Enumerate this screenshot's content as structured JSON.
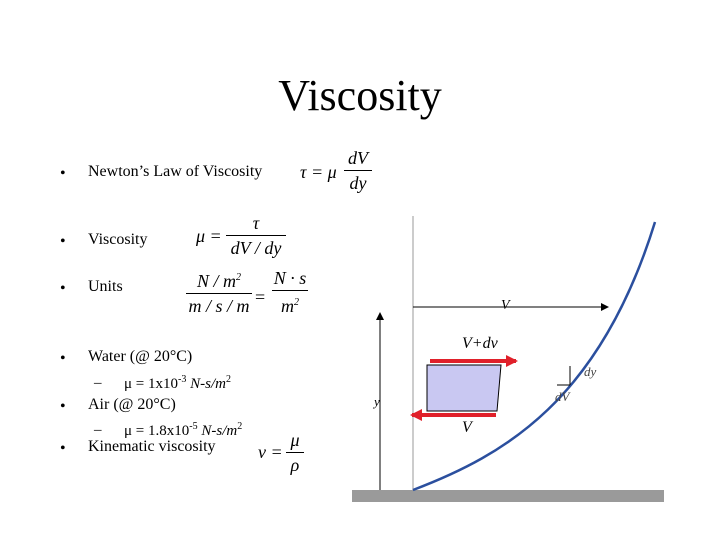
{
  "title": "Viscosity",
  "bullets": [
    {
      "marker": "•",
      "text": "Newton’s Law of Viscosity"
    },
    {
      "marker": "•",
      "text": "Viscosity"
    },
    {
      "marker": "•",
      "text": "Units"
    },
    {
      "marker": "•",
      "text": "Water (@ 20°C)"
    },
    {
      "marker": "•",
      "text": "Air (@ 20°C)"
    },
    {
      "marker": "•",
      "text": "Kinematic viscosity"
    }
  ],
  "water_sub": {
    "dash": "–",
    "mu": "μ = 1x10",
    "exp": "-3",
    "unit": " N-s/m",
    "unit_exp": "2"
  },
  "air_sub": {
    "dash": "–",
    "mu": "μ = 1.8x10",
    "exp": "-5",
    "unit": " N-s/m",
    "unit_exp": "2"
  },
  "eq_newton": {
    "lhs": "τ = μ",
    "num": "dV",
    "den": "dy"
  },
  "eq_viscosity": {
    "lhs": "μ =",
    "num": "τ",
    "den": "dV / dy"
  },
  "eq_units": {
    "num1": "N / m",
    "num1_exp": "2",
    "den1": "m / s / m",
    "eq": "=",
    "num2": "N · s",
    "den2": "m",
    "den2_exp": "2"
  },
  "eq_kinematic": {
    "lhs": "ν =",
    "num": "μ",
    "den": "ρ"
  },
  "diagram": {
    "v_top": "V",
    "v_plus_dv": "V+dv",
    "v_bottom": "V",
    "y": "y",
    "dy": "dy",
    "dv": "dV",
    "colors": {
      "arrow": "#e0202a",
      "curve": "#2b4f9e",
      "block": "#c9c8f2",
      "ground": "#9a9a9a"
    }
  }
}
